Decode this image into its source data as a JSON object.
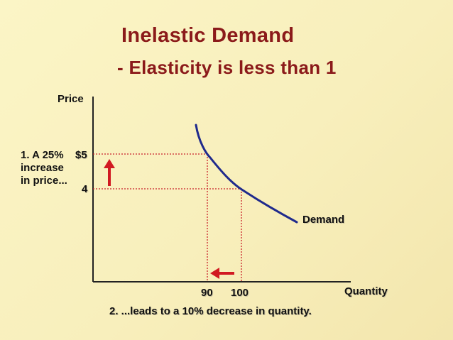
{
  "title": "Inelastic Demand",
  "subtitle": "- Elasticity is less than 1",
  "axes": {
    "y_label": "Price",
    "x_label": "Quantity"
  },
  "curve_label": "Demand",
  "ticks": {
    "p_high": "$5",
    "p_low": "4",
    "q_low": "90",
    "q_high": "100"
  },
  "annotations": {
    "price_line1": "1. A 25%",
    "price_line2": "increase",
    "price_line3": "in price...",
    "quantity_note": "2. ...leads to a 10% decrease in quantity."
  },
  "colors": {
    "title": "#8b1a1a",
    "curve": "#1f2a8c",
    "guide": "#c8202a",
    "arrow": "#d11a22"
  }
}
